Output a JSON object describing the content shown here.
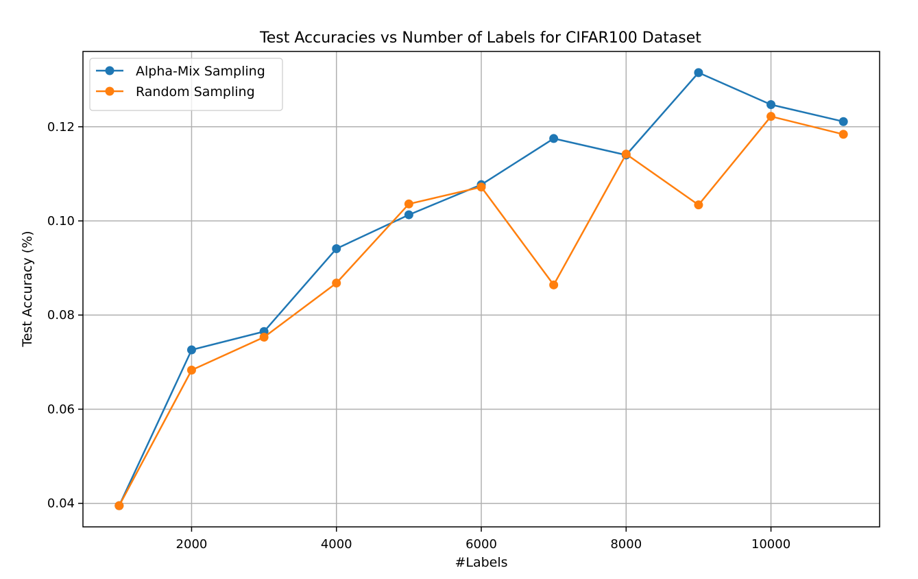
{
  "chart_data": {
    "type": "line",
    "title": "Test Accuracies vs Number of Labels for CIFAR100 Dataset",
    "xlabel": "#Labels",
    "ylabel": "Test Accuracy (%)",
    "xlim": [
      500,
      11500
    ],
    "ylim": [
      0.035,
      0.136
    ],
    "xticks": [
      2000,
      4000,
      6000,
      8000,
      10000
    ],
    "xtick_labels": [
      "2000",
      "4000",
      "6000",
      "8000",
      "10000"
    ],
    "yticks": [
      0.04,
      0.06,
      0.08,
      0.1,
      0.12
    ],
    "ytick_labels": [
      "0.04",
      "0.06",
      "0.08",
      "0.10",
      "0.12"
    ],
    "grid": true,
    "legend_position": "top-left",
    "x": [
      1000,
      2000,
      3000,
      4000,
      5000,
      6000,
      7000,
      8000,
      9000,
      10000,
      11000
    ],
    "series": [
      {
        "name": "Alpha-Mix Sampling",
        "color": "#1f77b4",
        "values": [
          0.0395,
          0.0726,
          0.0765,
          0.0941,
          0.1013,
          0.1077,
          0.1175,
          0.114,
          0.1315,
          0.1247,
          0.1211
        ]
      },
      {
        "name": "Random Sampling",
        "color": "#ff7f0e",
        "values": [
          0.0395,
          0.0683,
          0.0753,
          0.0868,
          0.1036,
          0.1072,
          0.0864,
          0.1142,
          0.1034,
          0.1222,
          0.1184
        ]
      }
    ]
  }
}
